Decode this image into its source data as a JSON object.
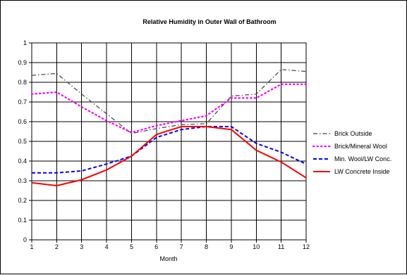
{
  "chart_data": {
    "type": "line",
    "title": "Relative Humidity in Outer Wall of Bathroom",
    "xlabel": "Month",
    "ylabel": "",
    "x": [
      1,
      2,
      3,
      4,
      5,
      6,
      7,
      8,
      9,
      10,
      11,
      12
    ],
    "xlim": [
      1,
      12
    ],
    "ylim": [
      0,
      1
    ],
    "yticks": [
      "0",
      "0.1",
      "0.2",
      "0.3",
      "0.4",
      "0.5",
      "0.6",
      "0.7",
      "0.8",
      "0.9",
      "1"
    ],
    "xticks": [
      "1",
      "2",
      "3",
      "4",
      "5",
      "6",
      "7",
      "8",
      "9",
      "10",
      "11",
      "12"
    ],
    "grid": true,
    "legend_position": "right",
    "series": [
      {
        "name": "Brick Outside",
        "color": "#404040",
        "style": "dash-dot",
        "values": [
          0.835,
          0.845,
          0.74,
          0.64,
          0.54,
          0.565,
          0.585,
          0.59,
          0.73,
          0.74,
          0.865,
          0.855
        ]
      },
      {
        "name": "Brick/Mineral Wool",
        "color": "#ff00ff",
        "style": "dotted",
        "values": [
          0.74,
          0.75,
          0.675,
          0.605,
          0.545,
          0.58,
          0.605,
          0.63,
          0.72,
          0.72,
          0.79,
          0.79
        ]
      },
      {
        "name": "Min. Wool/LW Conc.",
        "color": "#0000ff",
        "style": "dashed",
        "values": [
          0.34,
          0.34,
          0.35,
          0.385,
          0.425,
          0.52,
          0.56,
          0.575,
          0.575,
          0.49,
          0.445,
          0.385
        ]
      },
      {
        "name": "LW Concrete Inside",
        "color": "#ff0000",
        "style": "solid",
        "values": [
          0.29,
          0.275,
          0.305,
          0.355,
          0.425,
          0.535,
          0.575,
          0.575,
          0.56,
          0.455,
          0.395,
          0.315
        ]
      }
    ]
  }
}
